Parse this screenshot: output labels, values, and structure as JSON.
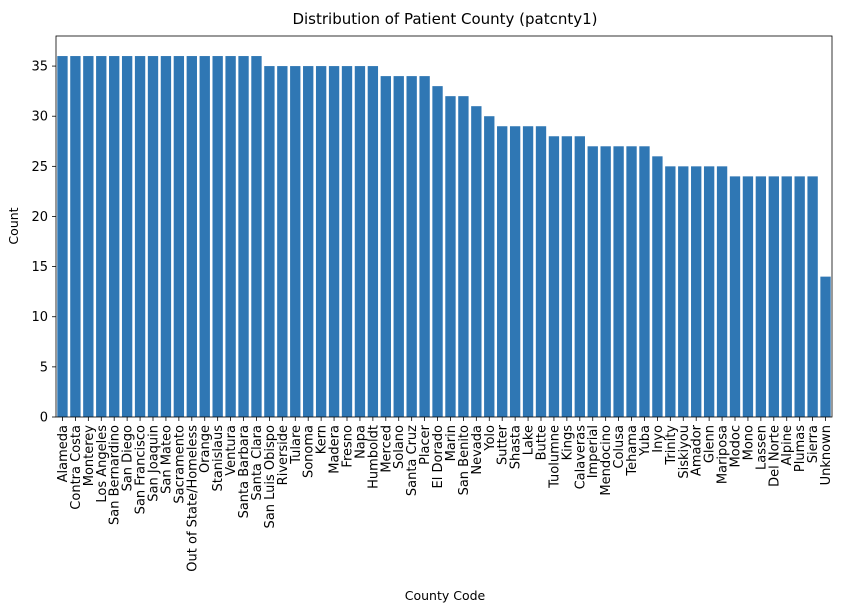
{
  "chart_data": {
    "type": "bar",
    "title": "Distribution of Patient County (patcnty1)",
    "xlabel": "County Code",
    "ylabel": "Count",
    "ylim": [
      0,
      38
    ],
    "yticks": [
      0,
      5,
      10,
      15,
      20,
      25,
      30,
      35
    ],
    "grid": false,
    "bar_color": "#2f77b4",
    "categories": [
      "Alameda",
      "Contra Costa",
      "Monterey",
      "Los Angeles",
      "San Bernardino",
      "San Diego",
      "San Francisco",
      "San Joaquin",
      "San Mateo",
      "Sacramento",
      "Out of State/Homeless",
      "Orange",
      "Stanislaus",
      "Ventura",
      "Santa Barbara",
      "Santa Clara",
      "San Luis Obispo",
      "Riverside",
      "Tulare",
      "Sonoma",
      "Kern",
      "Madera",
      "Fresno",
      "Napa",
      "Humboldt",
      "Merced",
      "Solano",
      "Santa Cruz",
      "Placer",
      "El Dorado",
      "Marin",
      "San Benito",
      "Nevada",
      "Yolo",
      "Sutter",
      "Shasta",
      "Lake",
      "Butte",
      "Tuolumne",
      "Kings",
      "Calaveras",
      "Imperial",
      "Mendocino",
      "Colusa",
      "Tehama",
      "Yuba",
      "Inyo",
      "Trinity",
      "Siskiyou",
      "Amador",
      "Glenn",
      "Mariposa",
      "Modoc",
      "Mono",
      "Lassen",
      "Del Norte",
      "Alpine",
      "Plumas",
      "Sierra",
      "Unknown"
    ],
    "values": [
      36,
      36,
      36,
      36,
      36,
      36,
      36,
      36,
      36,
      36,
      36,
      36,
      36,
      36,
      36,
      36,
      35,
      35,
      35,
      35,
      35,
      35,
      35,
      35,
      35,
      34,
      34,
      34,
      34,
      33,
      32,
      32,
      31,
      30,
      29,
      29,
      29,
      29,
      28,
      28,
      28,
      27,
      27,
      27,
      27,
      27,
      26,
      25,
      25,
      25,
      25,
      25,
      24,
      24,
      24,
      24,
      24,
      24,
      24,
      14
    ]
  }
}
